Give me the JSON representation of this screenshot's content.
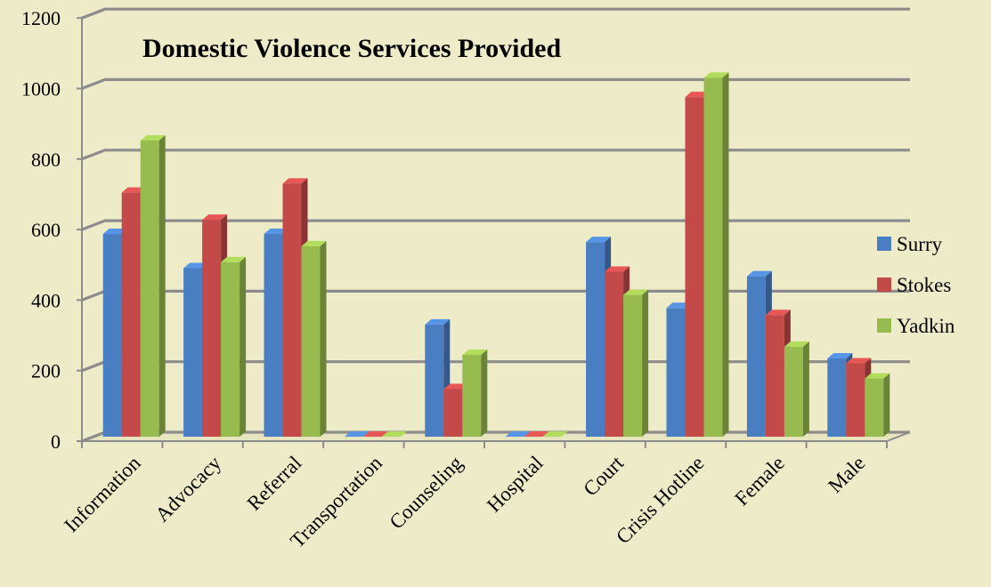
{
  "chart_data": {
    "type": "bar",
    "title": "Domestic Violence Services Provided",
    "xlabel": "",
    "ylabel": "",
    "ylim": [
      0,
      1200
    ],
    "yticks": [
      0,
      200,
      400,
      600,
      800,
      1000,
      1200
    ],
    "categories": [
      "Information",
      "Advocacy",
      "Referral",
      "Transportation",
      "Counseling",
      "Hospital",
      "Court",
      "Crisis Hotline",
      "Female",
      "Male"
    ],
    "series": [
      {
        "name": "Surry",
        "color": "#4a7ec3",
        "values": [
          575,
          478,
          575,
          0,
          318,
          0,
          552,
          365,
          455,
          222
        ]
      },
      {
        "name": "Stokes",
        "color": "#c34a48",
        "values": [
          692,
          615,
          718,
          0,
          135,
          0,
          468,
          963,
          345,
          208
        ]
      },
      {
        "name": "Yadkin",
        "color": "#97bb4e",
        "values": [
          840,
          495,
          540,
          0,
          232,
          0,
          402,
          1018,
          255,
          165
        ]
      }
    ],
    "grid": true,
    "legend_position": "right",
    "style": "3d-clustered-column"
  }
}
